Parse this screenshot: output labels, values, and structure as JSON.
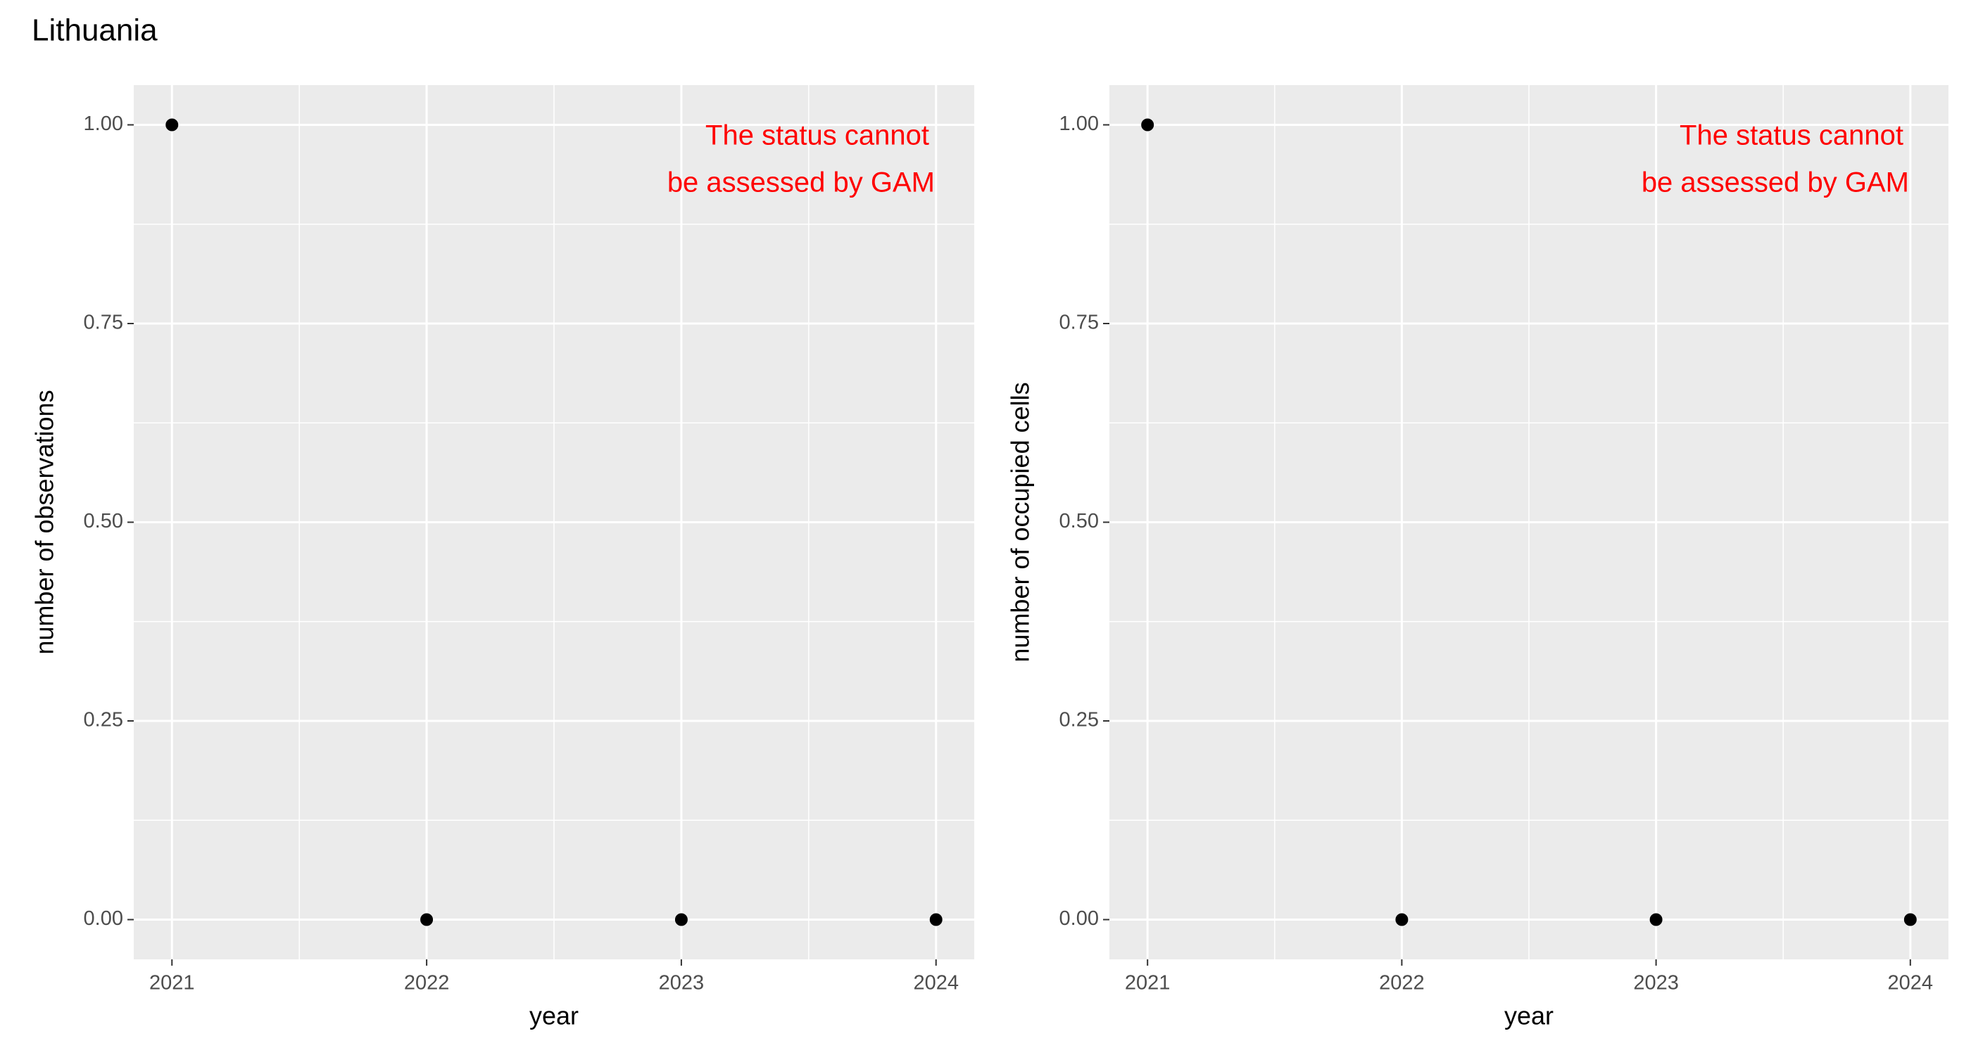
{
  "title": "Lithuania",
  "chart_data": [
    {
      "type": "scatter",
      "xlabel": "year",
      "ylabel": "number of observations",
      "x": [
        2021,
        2022,
        2023,
        2024
      ],
      "values": [
        1,
        0,
        0,
        0
      ],
      "color": "#000000",
      "xlim": [
        2020.85,
        2024.15
      ],
      "xticks": [
        2021,
        2022,
        2023,
        2024
      ],
      "ylim": [
        -0.05,
        1.05
      ],
      "yticks": [
        {
          "value": 0,
          "label": "0.00"
        },
        0.25,
        {
          "value": 0.5,
          "label": "0.50"
        },
        0.75,
        {
          "value": 1,
          "label": "1.00"
        }
      ],
      "grid": true,
      "annotation": [
        "The status cannot",
        "be assessed by GAM"
      ],
      "annotation_color": "#ff0000"
    },
    {
      "type": "scatter",
      "xlabel": "year",
      "ylabel": "number of occupied cells",
      "x": [
        2021,
        2022,
        2023,
        2024
      ],
      "values": [
        1,
        0,
        0,
        0
      ],
      "color": "#000000",
      "xlim": [
        2020.85,
        2024.15
      ],
      "xticks": [
        2021,
        2022,
        2023,
        2024
      ],
      "ylim": [
        -0.05,
        1.05
      ],
      "yticks": [
        {
          "value": 0,
          "label": "0.00"
        },
        0.25,
        {
          "value": 0.5,
          "label": "0.50"
        },
        0.75,
        {
          "value": 1,
          "label": "1.00"
        }
      ],
      "grid": true,
      "annotation": [
        "The status cannot",
        "be assessed by GAM"
      ],
      "annotation_color": "#ff0000"
    }
  ]
}
